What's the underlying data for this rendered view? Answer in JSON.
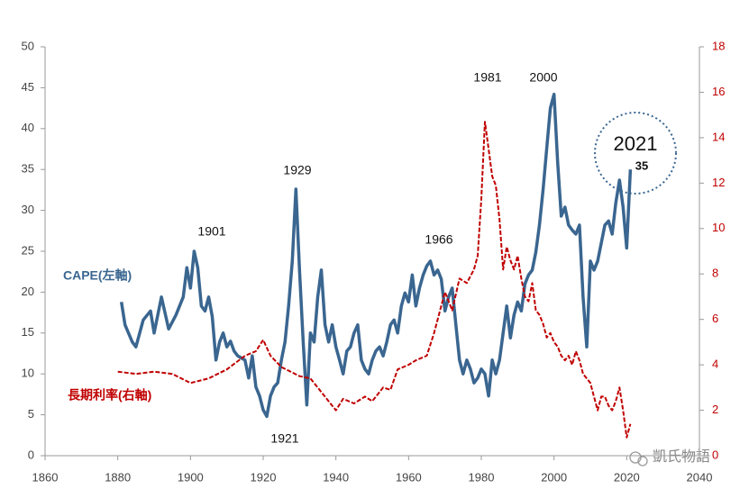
{
  "chart_data": {
    "type": "line",
    "xlim": [
      1860,
      2040
    ],
    "xticks": [
      1860,
      1880,
      1900,
      1920,
      1940,
      1960,
      1980,
      2000,
      2020,
      2040
    ],
    "ylim": [
      0,
      50
    ],
    "yticks": [
      0,
      5,
      10,
      15,
      20,
      25,
      30,
      35,
      40,
      45,
      50
    ],
    "y2lim": [
      0,
      18
    ],
    "y2ticks": [
      0,
      2,
      4,
      6,
      8,
      10,
      12,
      14,
      16,
      18
    ],
    "grid": false,
    "series": [
      {
        "name": "CAPE(左軸)",
        "color": "#3a6690",
        "axis": "y",
        "x": [
          1881,
          1882,
          1884,
          1885,
          1887,
          1889,
          1890,
          1892,
          1894,
          1896,
          1898,
          1899,
          1900,
          1901,
          1902,
          1903,
          1904,
          1905,
          1906,
          1907,
          1908,
          1909,
          1910,
          1911,
          1912,
          1913,
          1915,
          1916,
          1917,
          1918,
          1919,
          1920,
          1921,
          1922,
          1923,
          1924,
          1925,
          1926,
          1927,
          1928,
          1929,
          1930,
          1931,
          1932,
          1933,
          1934,
          1935,
          1936,
          1937,
          1938,
          1939,
          1940,
          1941,
          1942,
          1943,
          1944,
          1945,
          1946,
          1947,
          1948,
          1949,
          1950,
          1951,
          1952,
          1953,
          1954,
          1955,
          1956,
          1957,
          1958,
          1959,
          1960,
          1961,
          1962,
          1963,
          1964,
          1965,
          1966,
          1967,
          1968,
          1969,
          1970,
          1971,
          1972,
          1973,
          1974,
          1975,
          1976,
          1977,
          1978,
          1979,
          1980,
          1981,
          1982,
          1983,
          1984,
          1985,
          1986,
          1987,
          1988,
          1989,
          1990,
          1991,
          1992,
          1993,
          1994,
          1995,
          1996,
          1997,
          1998,
          1999,
          2000,
          2001,
          2002,
          2003,
          2004,
          2005,
          2006,
          2007,
          2008,
          2009,
          2010,
          2011,
          2012,
          2013,
          2014,
          2015,
          2016,
          2017,
          2018,
          2019,
          2020,
          2021
        ],
        "values": [
          18.8,
          16,
          13.9,
          13.3,
          16.6,
          17.7,
          15,
          19.4,
          15.5,
          17.2,
          19.4,
          23,
          20.5,
          25,
          23,
          18.3,
          17.7,
          19.4,
          17,
          11.7,
          13.9,
          15,
          13.3,
          14,
          12.8,
          12.2,
          11.7,
          9.5,
          12.2,
          8.4,
          7.3,
          5.6,
          4.8,
          7.3,
          8.4,
          8.9,
          11.7,
          13.9,
          18.3,
          23.8,
          32.6,
          22.7,
          13.9,
          6.2,
          15,
          13.9,
          19.4,
          22.7,
          16,
          13.9,
          16,
          13.3,
          11.7,
          10,
          12.8,
          13.3,
          15,
          16,
          11.7,
          10.6,
          10,
          11.7,
          12.8,
          13.3,
          12.2,
          13.9,
          16,
          16.6,
          15,
          18.3,
          19.9,
          18.8,
          22.1,
          18.3,
          20.5,
          22.1,
          23.2,
          23.8,
          22.1,
          22.7,
          21.6,
          17.7,
          19.4,
          20.5,
          16,
          11.7,
          10,
          11.7,
          10.6,
          8.9,
          9.5,
          10.6,
          10,
          7.3,
          11.7,
          10,
          11.7,
          15,
          18.3,
          14.4,
          17.2,
          18.8,
          17.7,
          21,
          22.1,
          22.7,
          24.9,
          28.2,
          32.6,
          37.6,
          42.5,
          44.2,
          35.9,
          29.3,
          30.4,
          28.2,
          27.6,
          27.1,
          28.2,
          19.4,
          13.3,
          23.8,
          22.7,
          23.8,
          26,
          28.2,
          28.7,
          27.1,
          30.9,
          33.7,
          30.4,
          25.4,
          35
        ]
      },
      {
        "name": "長期利率(右軸)",
        "color": "#c00000",
        "axis": "y2",
        "x": [
          1880,
          1885,
          1890,
          1895,
          1900,
          1905,
          1910,
          1915,
          1918,
          1920,
          1922,
          1925,
          1930,
          1933,
          1935,
          1938,
          1940,
          1942,
          1945,
          1948,
          1950,
          1953,
          1955,
          1957,
          1960,
          1962,
          1965,
          1967,
          1969,
          1970,
          1972,
          1974,
          1976,
          1978,
          1979,
          1980,
          1981,
          1982,
          1983,
          1984,
          1985,
          1986,
          1987,
          1988,
          1989,
          1990,
          1991,
          1992,
          1993,
          1994,
          1995,
          1996,
          1997,
          1998,
          1999,
          2000,
          2001,
          2002,
          2003,
          2004,
          2005,
          2006,
          2007,
          2008,
          2009,
          2010,
          2011,
          2012,
          2013,
          2014,
          2015,
          2016,
          2017,
          2018,
          2019,
          2020,
          2021
        ],
        "values": [
          3.7,
          3.6,
          3.7,
          3.6,
          3.2,
          3.4,
          3.8,
          4.4,
          4.6,
          5.1,
          4.4,
          3.9,
          3.5,
          3.4,
          3,
          2.4,
          2,
          2.5,
          2.3,
          2.6,
          2.4,
          3,
          2.9,
          3.8,
          4,
          4.2,
          4.4,
          5.4,
          6.6,
          7.2,
          6.4,
          7.8,
          7.6,
          8.2,
          8.8,
          11.3,
          14.7,
          13.5,
          12.3,
          11.9,
          10.4,
          8.2,
          9.2,
          8.6,
          8.2,
          8.8,
          7.8,
          7,
          6.8,
          7.6,
          6.4,
          6.2,
          5.8,
          5.2,
          5.4,
          5,
          4.8,
          4.4,
          4.2,
          4.4,
          4,
          4.6,
          4.2,
          3.6,
          3.4,
          3.2,
          2.6,
          2,
          2.6,
          2.6,
          2.2,
          2,
          2.4,
          3,
          2,
          0.8,
          1.4
        ]
      }
    ],
    "annotations": [
      "1901",
      "1929",
      "1921",
      "1966",
      "1981",
      "2000",
      "2021",
      "35"
    ],
    "watermark": "凱氏物語"
  }
}
